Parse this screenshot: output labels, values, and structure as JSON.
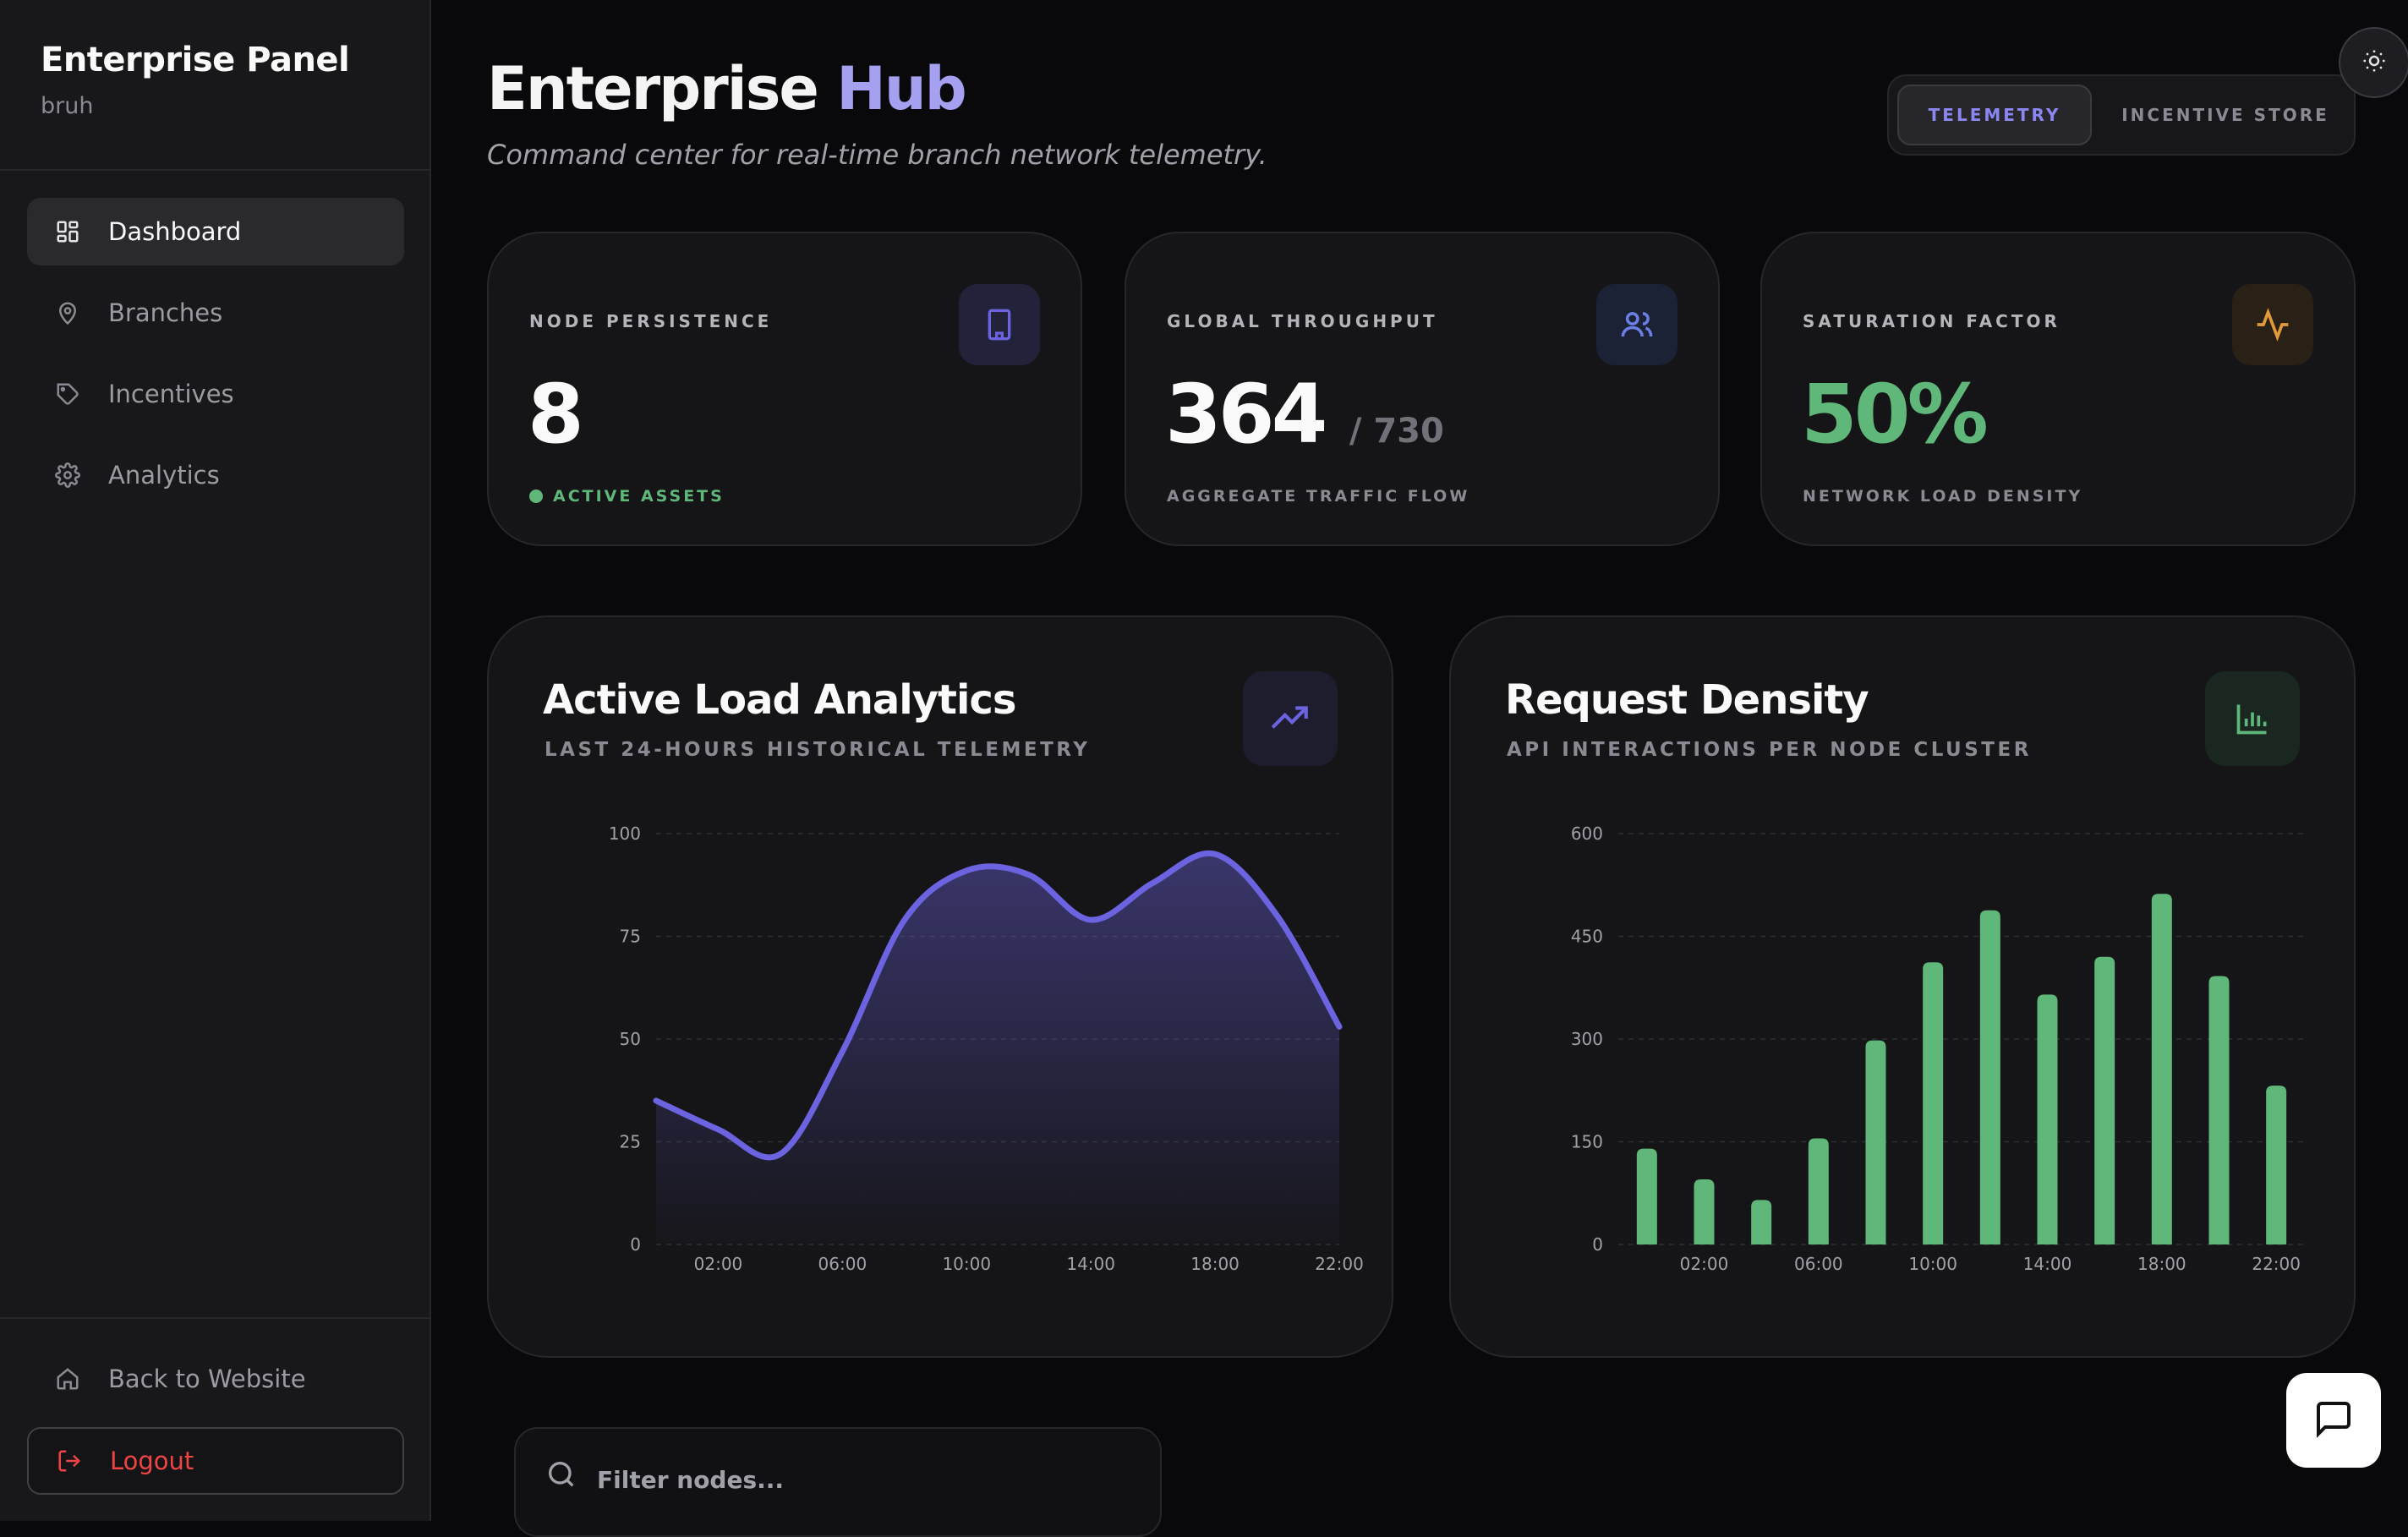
{
  "sidebar": {
    "title": "Enterprise Panel",
    "subtitle": "bruh",
    "items": [
      {
        "label": "Dashboard",
        "icon": "dashboard-icon"
      },
      {
        "label": "Branches",
        "icon": "map-pin-icon"
      },
      {
        "label": "Incentives",
        "icon": "tag-icon"
      },
      {
        "label": "Analytics",
        "icon": "gear-icon"
      }
    ],
    "back_label": "Back to Website",
    "logout_label": "Logout"
  },
  "header": {
    "title_part1": "Enterprise",
    "title_part2": "Hub",
    "subtitle": "Command center for real-time branch network telemetry.",
    "tabs": [
      "TELEMETRY",
      "INCENTIVE STORE"
    ],
    "active_tab": "TELEMETRY"
  },
  "stats": [
    {
      "label": "NODE PERSISTENCE",
      "value": "8",
      "footer": "ACTIVE ASSETS",
      "icon": "building-icon"
    },
    {
      "label": "GLOBAL THROUGHPUT",
      "value": "364",
      "value_suffix": "/ 730",
      "footer": "AGGREGATE TRAFFIC FLOW",
      "icon": "users-icon"
    },
    {
      "label": "SATURATION FACTOR",
      "value": "50%",
      "footer": "NETWORK LOAD DENSITY",
      "icon": "activity-icon"
    }
  ],
  "colors": {
    "accent": "#6c63e0",
    "accent_light": "#a5a0f0",
    "green": "#5fb77a",
    "amber": "#e09a3a",
    "danger": "#ef4444"
  },
  "charts": {
    "load": {
      "title": "Active Load Analytics",
      "subtitle": "LAST 24-HOURS HISTORICAL TELEMETRY",
      "icon": "trending-up-icon"
    },
    "density": {
      "title": "Request Density",
      "subtitle": "API INTERACTIONS PER NODE CLUSTER",
      "icon": "bar-chart-icon"
    }
  },
  "chart_data": [
    {
      "type": "area",
      "title": "Active Load Analytics",
      "x": [
        "00:00",
        "02:00",
        "04:00",
        "06:00",
        "08:00",
        "10:00",
        "12:00",
        "14:00",
        "16:00",
        "18:00",
        "20:00",
        "22:00"
      ],
      "xticks": [
        "02:00",
        "06:00",
        "10:00",
        "14:00",
        "18:00",
        "22:00"
      ],
      "values": [
        35,
        28,
        22,
        47,
        79,
        91,
        90,
        79,
        88,
        95,
        80,
        53
      ],
      "ylim": [
        0,
        100
      ],
      "yticks": [
        0,
        25,
        50,
        75,
        100
      ],
      "grid": true
    },
    {
      "type": "bar",
      "title": "Request Density",
      "x": [
        "00:00",
        "02:00",
        "04:00",
        "06:00",
        "08:00",
        "10:00",
        "12:00",
        "14:00",
        "16:00",
        "18:00",
        "20:00",
        "22:00"
      ],
      "xticks": [
        "02:00",
        "06:00",
        "10:00",
        "14:00",
        "18:00",
        "22:00"
      ],
      "values": [
        140,
        95,
        65,
        155,
        298,
        412,
        488,
        365,
        420,
        512,
        392,
        232
      ],
      "ylim": [
        0,
        600
      ],
      "yticks": [
        0,
        150,
        300,
        450,
        600
      ],
      "grid": true
    }
  ],
  "filter": {
    "placeholder": "Filter nodes..."
  }
}
